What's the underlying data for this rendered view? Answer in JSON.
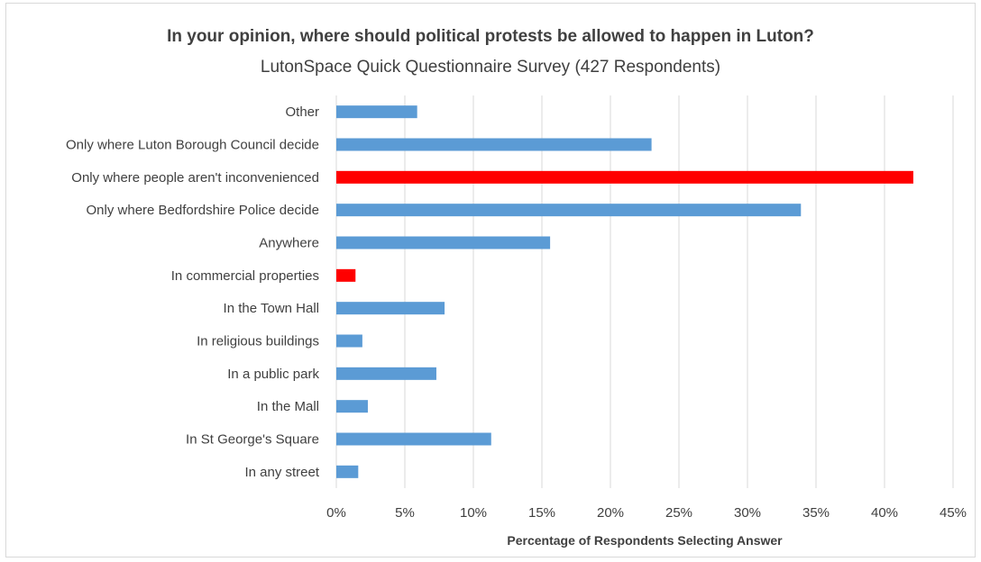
{
  "chart_data": {
    "type": "bar",
    "orientation": "horizontal",
    "title": "In your opinion, where should political protests be allowed to happen in Luton?",
    "subtitle": "LutonSpace Quick Questionnaire Survey (427 Respondents)",
    "xlabel": "Percentage of Respondents Selecting Answer",
    "ylabel": "",
    "xlim": [
      0,
      45
    ],
    "x_ticks": [
      "0%",
      "5%",
      "10%",
      "15%",
      "20%",
      "25%",
      "30%",
      "35%",
      "40%",
      "45%"
    ],
    "x_tick_values": [
      0,
      5,
      10,
      15,
      20,
      25,
      30,
      35,
      40,
      45
    ],
    "grid": "vertical",
    "legend": "none",
    "categories": [
      "Other",
      "Only where Luton Borough Council decide",
      "Only where people aren't inconvenienced",
      "Only where Bedfordshire Police decide",
      "Anywhere",
      "In commercial properties",
      "In the Town Hall",
      "In religious buildings",
      "In a public park",
      "In the Mall",
      "In St George's Square",
      "In any street"
    ],
    "values": [
      5.9,
      23.0,
      42.1,
      33.9,
      15.6,
      1.4,
      7.9,
      1.9,
      7.3,
      2.3,
      11.3,
      1.6
    ],
    "colors": [
      "#5b9bd5",
      "#5b9bd5",
      "#ff0000",
      "#5b9bd5",
      "#5b9bd5",
      "#ff0000",
      "#5b9bd5",
      "#5b9bd5",
      "#5b9bd5",
      "#5b9bd5",
      "#5b9bd5",
      "#5b9bd5"
    ]
  }
}
